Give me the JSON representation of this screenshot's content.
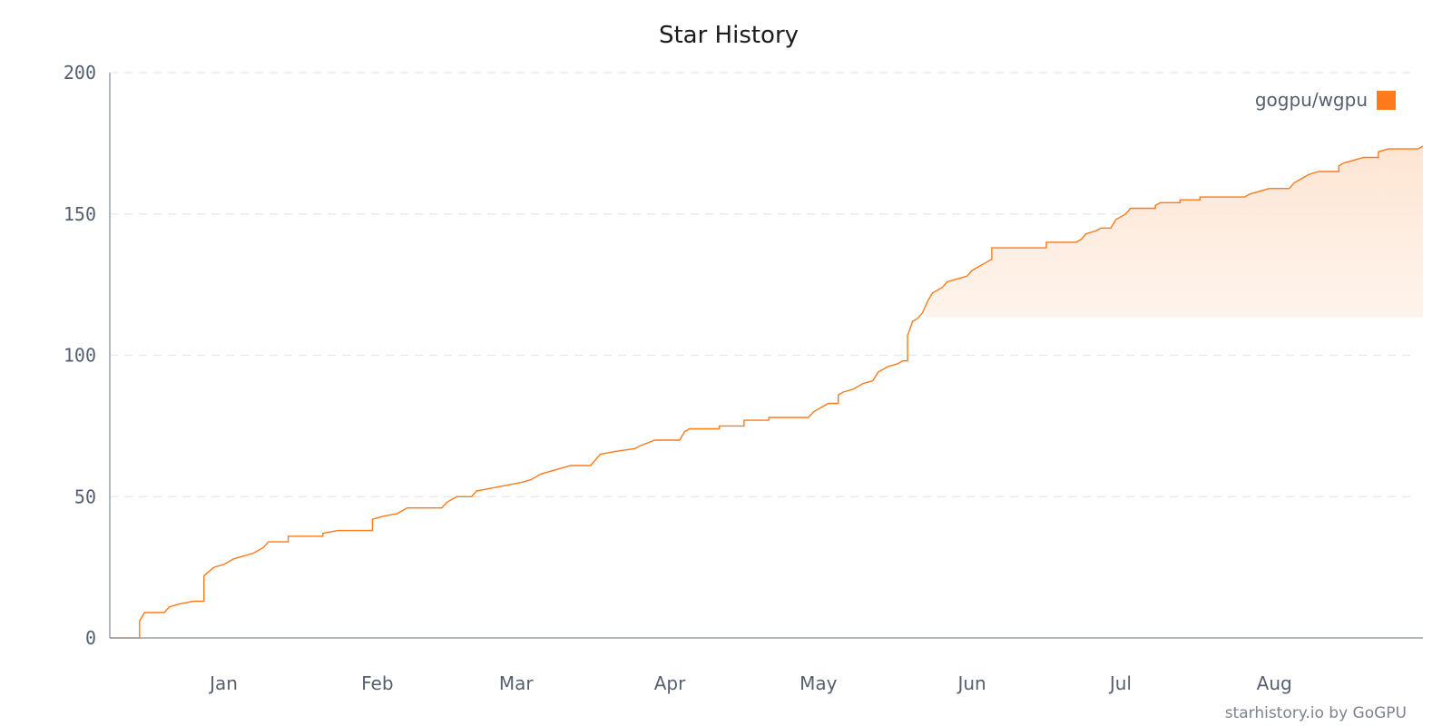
{
  "chart_data": {
    "type": "line",
    "title": "Star History",
    "xlabel": "",
    "ylabel": "",
    "ylim": [
      0,
      200
    ],
    "yticks": [
      "0",
      "50",
      "100",
      "150",
      "200"
    ],
    "xlim": [
      "2024-12-09",
      "2025-08-31"
    ],
    "xticks": [
      {
        "label": "Jan",
        "date": "2025-01-01"
      },
      {
        "label": "Feb",
        "date": "2025-02-01"
      },
      {
        "label": "Mar",
        "date": "2025-03-01"
      },
      {
        "label": "Apr",
        "date": "2025-04-01"
      },
      {
        "label": "May",
        "date": "2025-05-01"
      },
      {
        "label": "Jun",
        "date": "2025-06-01"
      },
      {
        "label": "Jul",
        "date": "2025-07-01"
      },
      {
        "label": "Aug",
        "date": "2025-08-01"
      }
    ],
    "grid": "horizontal-dashed",
    "legend": "top-right",
    "series": [
      {
        "name": "gogpu/wgpu",
        "color": "#ff7a1a",
        "points": [
          [
            "2024-12-09",
            0
          ],
          [
            "2024-12-15",
            0
          ],
          [
            "2024-12-15",
            6
          ],
          [
            "2024-12-16",
            9
          ],
          [
            "2024-12-20",
            9
          ],
          [
            "2024-12-21",
            11
          ],
          [
            "2024-12-23",
            12
          ],
          [
            "2024-12-26",
            13
          ],
          [
            "2024-12-28",
            13
          ],
          [
            "2024-12-28",
            22
          ],
          [
            "2024-12-30",
            25
          ],
          [
            "2025-01-01",
            26
          ],
          [
            "2025-01-03",
            28
          ],
          [
            "2025-01-05",
            29
          ],
          [
            "2025-01-07",
            30
          ],
          [
            "2025-01-09",
            32
          ],
          [
            "2025-01-10",
            34
          ],
          [
            "2025-01-14",
            34
          ],
          [
            "2025-01-14",
            36
          ],
          [
            "2025-01-21",
            36
          ],
          [
            "2025-01-21",
            37
          ],
          [
            "2025-01-24",
            38
          ],
          [
            "2025-01-31",
            38
          ],
          [
            "2025-01-31",
            42
          ],
          [
            "2025-02-02",
            43
          ],
          [
            "2025-02-05",
            44
          ],
          [
            "2025-02-07",
            46
          ],
          [
            "2025-02-14",
            46
          ],
          [
            "2025-02-15",
            48
          ],
          [
            "2025-02-17",
            50
          ],
          [
            "2025-02-20",
            50
          ],
          [
            "2025-02-21",
            52
          ],
          [
            "2025-02-24",
            53
          ],
          [
            "2025-02-27",
            54
          ],
          [
            "2025-03-02",
            55
          ],
          [
            "2025-03-04",
            56
          ],
          [
            "2025-03-06",
            58
          ],
          [
            "2025-03-08",
            59
          ],
          [
            "2025-03-10",
            60
          ],
          [
            "2025-03-12",
            61
          ],
          [
            "2025-03-16",
            61
          ],
          [
            "2025-03-17",
            63
          ],
          [
            "2025-03-18",
            65
          ],
          [
            "2025-03-21",
            66
          ],
          [
            "2025-03-25",
            67
          ],
          [
            "2025-03-26",
            68
          ],
          [
            "2025-03-29",
            70
          ],
          [
            "2025-04-03",
            70
          ],
          [
            "2025-04-04",
            73
          ],
          [
            "2025-04-05",
            74
          ],
          [
            "2025-04-11",
            74
          ],
          [
            "2025-04-11",
            75
          ],
          [
            "2025-04-16",
            75
          ],
          [
            "2025-04-16",
            77
          ],
          [
            "2025-04-21",
            77
          ],
          [
            "2025-04-21",
            78
          ],
          [
            "2025-04-29",
            78
          ],
          [
            "2025-04-30",
            80
          ],
          [
            "2025-05-01",
            81
          ],
          [
            "2025-05-02",
            82
          ],
          [
            "2025-05-03",
            83
          ],
          [
            "2025-05-05",
            83
          ],
          [
            "2025-05-05",
            86
          ],
          [
            "2025-05-06",
            87
          ],
          [
            "2025-05-08",
            88
          ],
          [
            "2025-05-10",
            90
          ],
          [
            "2025-05-12",
            91
          ],
          [
            "2025-05-13",
            94
          ],
          [
            "2025-05-14",
            95
          ],
          [
            "2025-05-15",
            96
          ],
          [
            "2025-05-17",
            97
          ],
          [
            "2025-05-18",
            98
          ],
          [
            "2025-05-19",
            98
          ],
          [
            "2025-05-19",
            107
          ],
          [
            "2025-05-20",
            112
          ],
          [
            "2025-05-21",
            113
          ],
          [
            "2025-05-22",
            115
          ],
          [
            "2025-05-23",
            119
          ],
          [
            "2025-05-24",
            122
          ],
          [
            "2025-05-26",
            124
          ],
          [
            "2025-05-27",
            126
          ],
          [
            "2025-05-29",
            127
          ],
          [
            "2025-05-31",
            128
          ],
          [
            "2025-06-01",
            130
          ],
          [
            "2025-06-02",
            131
          ],
          [
            "2025-06-03",
            132
          ],
          [
            "2025-06-04",
            133
          ],
          [
            "2025-06-05",
            134
          ],
          [
            "2025-06-05",
            138
          ],
          [
            "2025-06-16",
            138
          ],
          [
            "2025-06-16",
            140
          ],
          [
            "2025-06-22",
            140
          ],
          [
            "2025-06-23",
            141
          ],
          [
            "2025-06-24",
            143
          ],
          [
            "2025-06-26",
            144
          ],
          [
            "2025-06-27",
            145
          ],
          [
            "2025-06-29",
            145
          ],
          [
            "2025-06-30",
            148
          ],
          [
            "2025-07-01",
            149
          ],
          [
            "2025-07-02",
            150
          ],
          [
            "2025-07-03",
            152
          ],
          [
            "2025-07-08",
            152
          ],
          [
            "2025-07-08",
            153
          ],
          [
            "2025-07-09",
            154
          ],
          [
            "2025-07-13",
            154
          ],
          [
            "2025-07-13",
            155
          ],
          [
            "2025-07-17",
            155
          ],
          [
            "2025-07-17",
            156
          ],
          [
            "2025-07-26",
            156
          ],
          [
            "2025-07-27",
            157
          ],
          [
            "2025-07-29",
            158
          ],
          [
            "2025-07-31",
            159
          ],
          [
            "2025-08-04",
            159
          ],
          [
            "2025-08-05",
            161
          ],
          [
            "2025-08-06",
            162
          ],
          [
            "2025-08-08",
            164
          ],
          [
            "2025-08-10",
            165
          ],
          [
            "2025-08-14",
            165
          ],
          [
            "2025-08-14",
            167
          ],
          [
            "2025-08-15",
            168
          ],
          [
            "2025-08-17",
            169
          ],
          [
            "2025-08-19",
            170
          ],
          [
            "2025-08-22",
            170
          ],
          [
            "2025-08-22",
            172
          ],
          [
            "2025-08-24",
            173
          ],
          [
            "2025-08-30",
            173
          ],
          [
            "2025-08-31",
            174
          ]
        ]
      }
    ]
  },
  "watermark": "starhistory.io by GoGPU",
  "colors": {
    "axis": "#9a9fa8",
    "grid": "#e8e8e8",
    "fill_top": "#fde3d0",
    "fill_bottom": "#ffffff"
  }
}
